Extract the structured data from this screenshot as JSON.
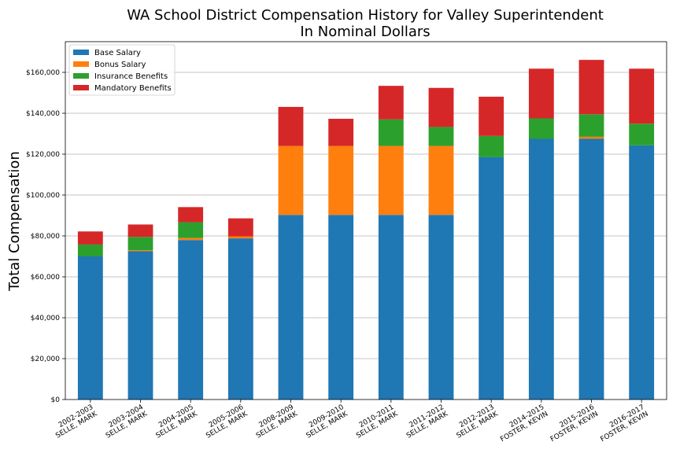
{
  "chart_data": {
    "type": "bar",
    "stacked": true,
    "title": [
      "WA School District Compensation History for Valley Superintendent",
      "In Nominal Dollars"
    ],
    "ylabel": "Total Compensation",
    "xlabel": "",
    "ylim": [
      0,
      175000
    ],
    "yticks": [
      0,
      20000,
      40000,
      60000,
      80000,
      100000,
      120000,
      140000,
      160000
    ],
    "ytick_labels": [
      "$0",
      "$20,000",
      "$40,000",
      "$60,000",
      "$80,000",
      "$100,000",
      "$120,000",
      "$140,000",
      "$160,000"
    ],
    "grid": "horizontal",
    "legend_position": "top-left",
    "categories": [
      [
        "2002-2003",
        "SELLE, MARK"
      ],
      [
        "2003-2004",
        "SELLE, MARK"
      ],
      [
        "2004-2005",
        "SELLE, MARK"
      ],
      [
        "2005-2006",
        "SELLE, MARK"
      ],
      [
        "2008-2009",
        "SELLE, MARK"
      ],
      [
        "2009-2010",
        "SELLE, MARK"
      ],
      [
        "2010-2011",
        "SELLE, MARK"
      ],
      [
        "2011-2012",
        "SELLE, MARK"
      ],
      [
        "2012-2013",
        "SELLE, MARK"
      ],
      [
        "2014-2015",
        "FOSTER, KEVIN"
      ],
      [
        "2015-2016",
        "FOSTER, KEVIN"
      ],
      [
        "2016-2017",
        "FOSTER, KEVIN"
      ]
    ],
    "series": [
      {
        "name": "Base Salary",
        "color": "#1f77b4",
        "values": [
          70000,
          72500,
          78000,
          78800,
          90300,
          90300,
          90300,
          90300,
          118500,
          127500,
          127500,
          124300
        ]
      },
      {
        "name": "Bonus Salary",
        "color": "#ff7f0e",
        "values": [
          0,
          500,
          1000,
          1000,
          33700,
          33700,
          33700,
          33700,
          0,
          0,
          1000,
          0
        ]
      },
      {
        "name": "Insurance Benefits",
        "color": "#2ca02c",
        "values": [
          5800,
          6500,
          7700,
          0,
          0,
          0,
          13000,
          9300,
          10400,
          10000,
          11000,
          10600
        ]
      },
      {
        "name": "Mandatory Benefits",
        "color": "#d62728",
        "values": [
          6400,
          6100,
          7400,
          8800,
          19100,
          13300,
          16400,
          19100,
          19200,
          24300,
          26600,
          26900
        ]
      }
    ]
  }
}
